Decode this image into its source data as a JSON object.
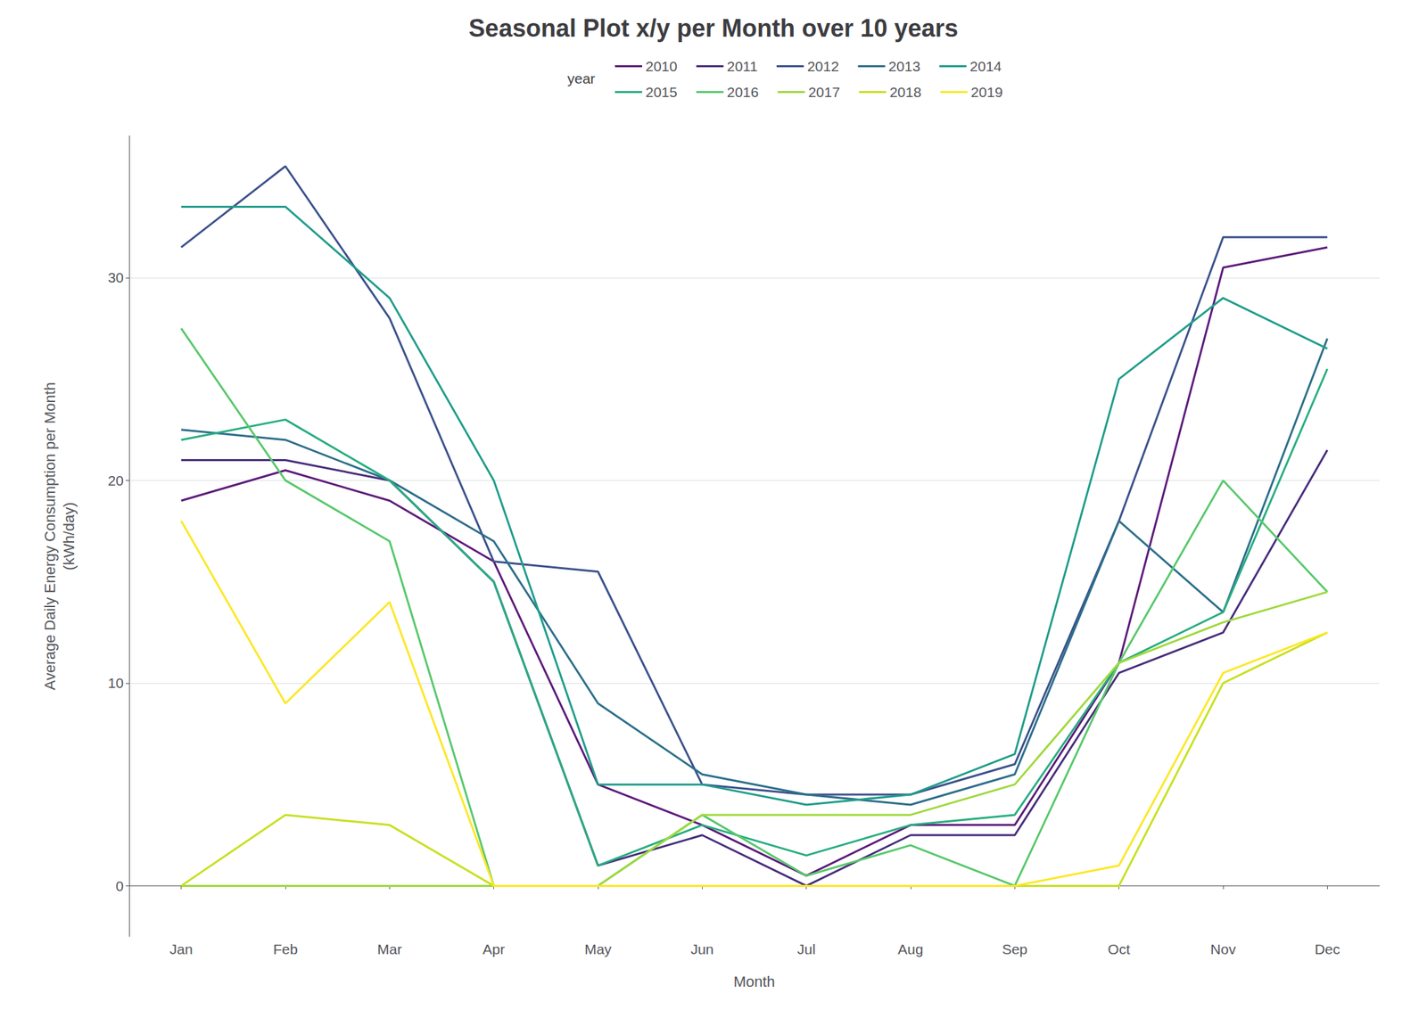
{
  "chart_data": {
    "type": "line",
    "title": "Seasonal Plot x/y per Month over 10 years",
    "xlabel": "Month",
    "ylabel": "Average Daily Energy Consumption per Month\n(kWh/day)",
    "legend_title": "year",
    "categories": [
      "Jan",
      "Feb",
      "Mar",
      "Apr",
      "May",
      "Jun",
      "Jul",
      "Aug",
      "Sep",
      "Oct",
      "Nov",
      "Dec"
    ],
    "series": [
      {
        "name": "2010",
        "color": "#5c1a7a",
        "values": [
          19.0,
          20.5,
          19.0,
          16.0,
          5.0,
          3.0,
          0.5,
          3.0,
          3.0,
          11.0,
          30.5,
          31.5
        ]
      },
      {
        "name": "2011",
        "color": "#472d7b",
        "values": [
          21.0,
          21.0,
          20.0,
          15.0,
          1.0,
          2.5,
          0.0,
          2.5,
          2.5,
          10.5,
          12.5,
          21.5
        ]
      },
      {
        "name": "2012",
        "color": "#3b518b",
        "values": [
          31.5,
          35.5,
          28.0,
          16.0,
          15.5,
          5.0,
          4.5,
          4.5,
          6.0,
          18.0,
          32.0,
          32.0
        ]
      },
      {
        "name": "2013",
        "color": "#2c6e8a",
        "values": [
          22.5,
          22.0,
          20.0,
          17.0,
          9.0,
          5.5,
          4.5,
          4.0,
          5.5,
          18.0,
          13.5,
          27.0
        ]
      },
      {
        "name": "2014",
        "color": "#1f9d8a",
        "values": [
          33.5,
          33.5,
          29.0,
          20.0,
          5.0,
          5.0,
          4.0,
          4.5,
          6.5,
          25.0,
          29.0,
          26.5
        ]
      },
      {
        "name": "2015",
        "color": "#27ad81",
        "values": [
          22.0,
          23.0,
          20.0,
          15.0,
          1.0,
          3.0,
          1.5,
          3.0,
          3.5,
          11.0,
          13.5,
          25.5
        ]
      },
      {
        "name": "2016",
        "color": "#57c86b",
        "values": [
          27.5,
          20.0,
          17.0,
          0.0,
          0.0,
          3.5,
          0.5,
          2.0,
          0.0,
          11.0,
          20.0,
          14.5
        ]
      },
      {
        "name": "2017",
        "color": "#9ed93a",
        "values": [
          0.0,
          0.0,
          0.0,
          0.0,
          0.0,
          3.5,
          3.5,
          3.5,
          5.0,
          11.0,
          13.0,
          14.5
        ]
      },
      {
        "name": "2018",
        "color": "#c8e020",
        "values": [
          0.0,
          3.5,
          3.0,
          0.0,
          0.0,
          0.0,
          0.0,
          0.0,
          0.0,
          0.0,
          10.0,
          12.5
        ]
      },
      {
        "name": "2019",
        "color": "#fde725",
        "values": [
          18.0,
          9.0,
          14.0,
          0.0,
          0.0,
          0.0,
          0.0,
          0.0,
          0.0,
          1.0,
          10.5,
          12.5
        ]
      }
    ],
    "ylim": [
      -2.5,
      37
    ],
    "yticks": [
      0,
      10,
      20,
      30
    ],
    "grid": true,
    "legend": "top"
  }
}
